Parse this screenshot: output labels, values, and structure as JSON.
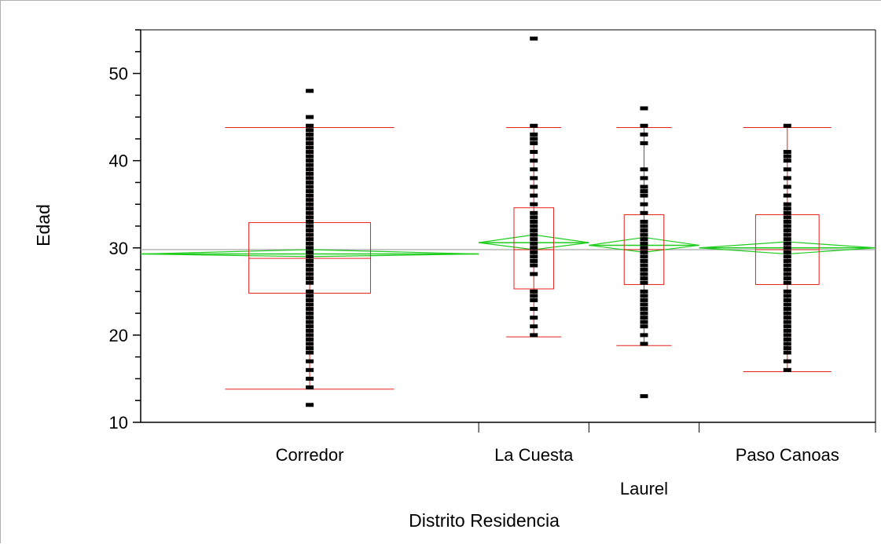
{
  "chart_data": {
    "type": "box",
    "xlabel": "Distrito Residencia",
    "ylabel": "Edad",
    "ylim": [
      10,
      55
    ],
    "yticks": [
      10,
      20,
      30,
      40,
      50
    ],
    "grand_mean": 29.8,
    "categories": [
      "Corredor",
      "La Cuesta",
      "Laurel",
      "Paso Canoas"
    ],
    "category_weights": [
      46,
      15,
      15,
      24
    ],
    "boxes": [
      {
        "category": "Corredor",
        "whisker_low": 13.8,
        "q1": 24.8,
        "median": 28.8,
        "q3": 32.9,
        "whisker_high": 43.8,
        "mean": 29.3,
        "ci": [
          29.0,
          29.8
        ],
        "points": [
          12,
          14,
          15,
          16,
          17,
          18,
          18.5,
          19,
          19.5,
          20,
          20.5,
          21,
          21.5,
          22,
          22.5,
          23,
          23.5,
          24,
          24.5,
          25,
          26,
          26.5,
          27,
          27.5,
          28,
          28.5,
          29,
          29.5,
          30,
          30.5,
          31,
          31.5,
          32,
          32.5,
          33,
          33.5,
          34,
          34.5,
          35,
          35.5,
          36,
          36.5,
          37,
          37.5,
          38,
          38.5,
          39,
          39.5,
          40,
          40.5,
          41,
          41.5,
          42,
          42.5,
          43,
          43.5,
          44,
          45,
          48
        ]
      },
      {
        "category": "La Cuesta",
        "whisker_low": 19.8,
        "q1": 25.3,
        "median": 29.8,
        "q3": 34.6,
        "whisker_high": 43.8,
        "mean": 30.6,
        "ci": [
          29.8,
          31.5
        ],
        "points": [
          20,
          21,
          22,
          23,
          24,
          24.5,
          25,
          27,
          28,
          28.5,
          29,
          29.5,
          30,
          30.5,
          31,
          31.5,
          32,
          32.5,
          33,
          33.5,
          34,
          35,
          36,
          37,
          38,
          39,
          40,
          41,
          42,
          42.5,
          43,
          44,
          54
        ]
      },
      {
        "category": "Laurel",
        "whisker_low": 18.8,
        "q1": 25.8,
        "median": 29.8,
        "q3": 33.8,
        "whisker_high": 43.8,
        "mean": 30.3,
        "ci": [
          29.5,
          31.2
        ],
        "points": [
          13,
          19,
          20,
          21,
          21.5,
          22,
          22.5,
          23,
          23.5,
          24,
          24.5,
          25,
          26,
          26.5,
          27,
          27.5,
          28,
          28.5,
          29,
          29.5,
          30,
          30.5,
          31,
          31.5,
          32,
          32.5,
          33,
          34,
          35,
          36,
          36.5,
          37,
          38,
          39,
          42,
          43,
          44,
          46
        ]
      },
      {
        "category": "Paso Canoas",
        "whisker_low": 15.8,
        "q1": 25.8,
        "median": 29.8,
        "q3": 33.8,
        "whisker_high": 43.8,
        "mean": 30.0,
        "ci": [
          29.3,
          30.7
        ],
        "points": [
          16,
          17,
          18,
          18.5,
          19,
          19.5,
          20,
          20.5,
          21,
          21.5,
          22,
          22.5,
          23,
          23.5,
          24,
          24.5,
          25,
          26,
          26.5,
          27,
          27.5,
          28,
          28.5,
          29,
          29.5,
          30,
          30.5,
          31,
          31.5,
          32,
          32.5,
          33,
          33.5,
          34,
          34.5,
          35,
          36,
          37,
          38,
          39,
          40,
          40.5,
          41,
          44
        ]
      }
    ],
    "colors": {
      "box": "#e8201c",
      "diamond": "#1ecc1e",
      "points": "#000000",
      "grand_mean_line": "#a8a8a8",
      "axis": "#000000"
    }
  }
}
